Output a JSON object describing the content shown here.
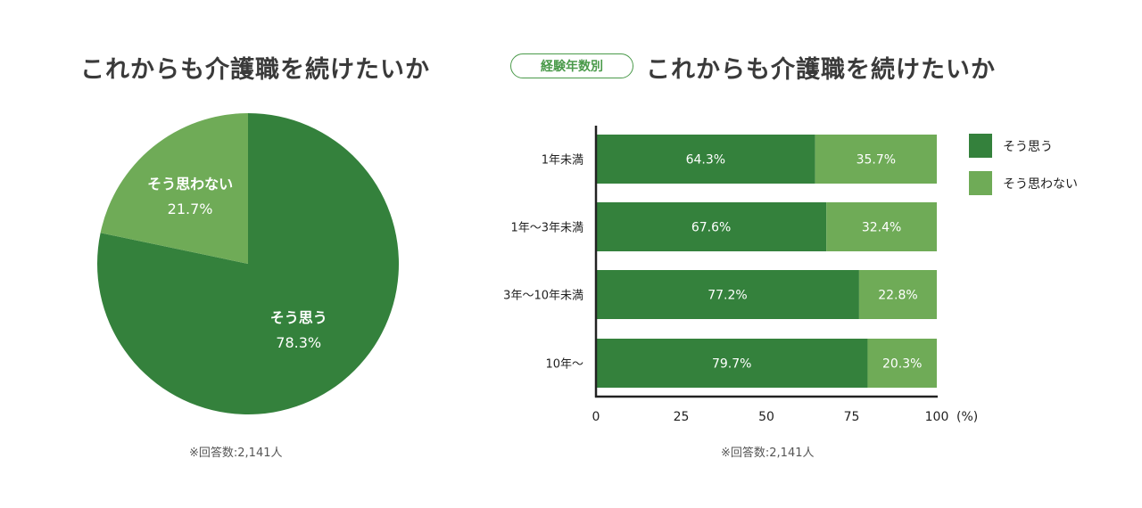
{
  "pie_title": "これからも介護職を続けたいか",
  "bar_badge": "経験年数別",
  "bar_title": "これからも介護職を続けたいか",
  "pie_note": "※回答数:2,141人",
  "bar_note": "※回答数:2,141人",
  "colors": {
    "dark_green": "#34813c",
    "light_green": "#6fab57",
    "badge_text": "#4a9a4a",
    "axis": "#222222"
  },
  "chart_data": [
    {
      "type": "pie",
      "title": "これからも介護職を続けたいか",
      "slices": [
        {
          "label": "そう思う",
          "value": 78.3,
          "value_label": "78.3%"
        },
        {
          "label": "そう思わない",
          "value": 21.7,
          "value_label": "21.7%"
        }
      ]
    },
    {
      "type": "bar",
      "orientation": "horizontal",
      "stacked": true,
      "title": "これからも介護職を続けたいか",
      "categories": [
        "1年未満",
        "1年～3年未満",
        "3年～10年未満",
        "10年～"
      ],
      "series": [
        {
          "name": "そう思う",
          "values": [
            64.3,
            67.6,
            77.2,
            79.7
          ],
          "labels": [
            "64.3%",
            "67.6%",
            "77.2%",
            "79.7%"
          ]
        },
        {
          "name": "そう思わない",
          "values": [
            35.7,
            32.4,
            22.8,
            20.3
          ],
          "labels": [
            "35.7%",
            "32.4%",
            "22.8%",
            "20.3%"
          ]
        }
      ],
      "xlim": [
        0,
        100
      ],
      "xticks": [
        "0",
        "25",
        "50",
        "75",
        "100"
      ],
      "xunit": "(%)",
      "legend": "top-right"
    }
  ]
}
